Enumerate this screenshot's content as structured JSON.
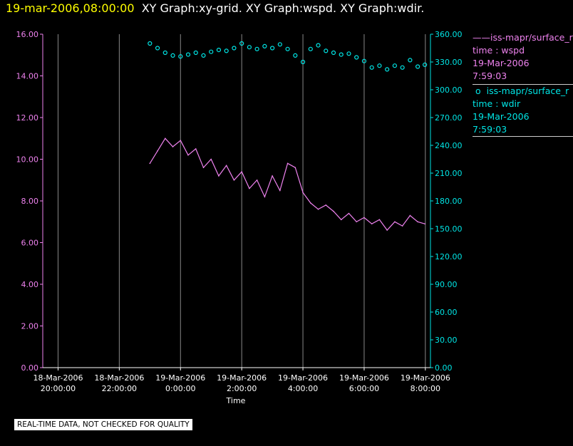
{
  "header": {
    "date_label": "19-mar-2006,08:00:00",
    "graph_list": "XY Graph:xy-grid.  XY Graph:wspd.  XY Graph:wdir."
  },
  "legend": [
    {
      "symbol": "——",
      "name": "iss-mapr/surface_r",
      "line1": "time : wspd",
      "line2": "19-Mar-2006",
      "line3": "7:59:03",
      "color": "#ee82ee"
    },
    {
      "symbol": "o",
      "name": "iss-mapr/surface_r",
      "line1": "time : wdir",
      "line2": "19-Mar-2006",
      "line3": "7:59:03",
      "color": "#00e5e5"
    }
  ],
  "disclaimer": "REAL-TIME DATA, NOT CHECKED FOR QUALITY",
  "colors": {
    "wspd": "#ee82ee",
    "wdir": "#00e5e5",
    "grid": "#888888",
    "text": "#ffffff"
  },
  "chart_data": {
    "type": "line",
    "xlabel": "Time",
    "xlim": [
      "18-Mar-2006 19:30",
      "19-Mar-2006 08:10"
    ],
    "x_ticks": [
      {
        "line1": "18-Mar-2006",
        "line2": "20:00:00"
      },
      {
        "line1": "18-Mar-2006",
        "line2": "22:00:00"
      },
      {
        "line1": "19-Mar-2006",
        "line2": "0:00:00"
      },
      {
        "line1": "19-Mar-2006",
        "line2": "2:00:00"
      },
      {
        "line1": "19-Mar-2006",
        "line2": "4:00:00"
      },
      {
        "line1": "19-Mar-2006",
        "line2": "6:00:00"
      },
      {
        "line1": "19-Mar-2006",
        "line2": "8:00:00"
      }
    ],
    "y_left": {
      "ylim": [
        0,
        16
      ],
      "ticks": [
        "0.00",
        "2.00",
        "4.00",
        "6.00",
        "8.00",
        "10.00",
        "12.00",
        "14.00",
        "16.00"
      ]
    },
    "y_right": {
      "ylim": [
        0,
        360
      ],
      "ticks": [
        "0.00",
        "30.00",
        "60.00",
        "90.00",
        "120.00",
        "150.00",
        "180.00",
        "210.00",
        "240.00",
        "270.00",
        "300.00",
        "330.00",
        "360.00"
      ]
    },
    "grid": "vertical",
    "series": [
      {
        "name": "iss-mapr/surface_r",
        "field": "wspd",
        "axis": "left",
        "style": "line",
        "x": [
          "18-Mar-2006 23:00",
          "18-Mar-2006 23:15",
          "18-Mar-2006 23:30",
          "18-Mar-2006 23:45",
          "19-Mar-2006 00:00",
          "19-Mar-2006 00:15",
          "19-Mar-2006 00:30",
          "19-Mar-2006 00:45",
          "19-Mar-2006 01:00",
          "19-Mar-2006 01:15",
          "19-Mar-2006 01:30",
          "19-Mar-2006 01:45",
          "19-Mar-2006 02:00",
          "19-Mar-2006 02:15",
          "19-Mar-2006 02:30",
          "19-Mar-2006 02:45",
          "19-Mar-2006 03:00",
          "19-Mar-2006 03:15",
          "19-Mar-2006 03:30",
          "19-Mar-2006 03:45",
          "19-Mar-2006 04:00",
          "19-Mar-2006 04:15",
          "19-Mar-2006 04:30",
          "19-Mar-2006 04:45",
          "19-Mar-2006 05:00",
          "19-Mar-2006 05:15",
          "19-Mar-2006 05:30",
          "19-Mar-2006 05:45",
          "19-Mar-2006 06:00",
          "19-Mar-2006 06:15",
          "19-Mar-2006 06:30",
          "19-Mar-2006 06:45",
          "19-Mar-2006 07:00",
          "19-Mar-2006 07:15",
          "19-Mar-2006 07:30",
          "19-Mar-2006 07:45",
          "19-Mar-2006 07:59"
        ],
        "values": [
          9.8,
          10.4,
          11.0,
          10.6,
          10.9,
          10.2,
          10.5,
          9.6,
          10.0,
          9.2,
          9.7,
          9.0,
          9.4,
          8.6,
          9.0,
          8.2,
          9.2,
          8.5,
          9.8,
          9.6,
          8.4,
          7.9,
          7.6,
          7.8,
          7.5,
          7.1,
          7.4,
          7.0,
          7.2,
          6.9,
          7.1,
          6.6,
          7.0,
          6.8,
          7.3,
          7.0,
          6.9
        ]
      },
      {
        "name": "iss-mapr/surface_r",
        "field": "wdir",
        "axis": "right",
        "style": "scatter",
        "x": [
          "18-Mar-2006 23:00",
          "18-Mar-2006 23:15",
          "18-Mar-2006 23:30",
          "18-Mar-2006 23:45",
          "19-Mar-2006 00:00",
          "19-Mar-2006 00:15",
          "19-Mar-2006 00:30",
          "19-Mar-2006 00:45",
          "19-Mar-2006 01:00",
          "19-Mar-2006 01:15",
          "19-Mar-2006 01:30",
          "19-Mar-2006 01:45",
          "19-Mar-2006 02:00",
          "19-Mar-2006 02:15",
          "19-Mar-2006 02:30",
          "19-Mar-2006 02:45",
          "19-Mar-2006 03:00",
          "19-Mar-2006 03:15",
          "19-Mar-2006 03:30",
          "19-Mar-2006 03:45",
          "19-Mar-2006 04:00",
          "19-Mar-2006 04:15",
          "19-Mar-2006 04:30",
          "19-Mar-2006 04:45",
          "19-Mar-2006 05:00",
          "19-Mar-2006 05:15",
          "19-Mar-2006 05:30",
          "19-Mar-2006 05:45",
          "19-Mar-2006 06:00",
          "19-Mar-2006 06:15",
          "19-Mar-2006 06:30",
          "19-Mar-2006 06:45",
          "19-Mar-2006 07:00",
          "19-Mar-2006 07:15",
          "19-Mar-2006 07:30",
          "19-Mar-2006 07:45",
          "19-Mar-2006 07:59"
        ],
        "values": [
          350,
          345,
          340,
          337,
          336,
          338,
          340,
          337,
          341,
          343,
          342,
          345,
          350,
          346,
          344,
          347,
          345,
          349,
          344,
          337,
          330,
          344,
          348,
          342,
          340,
          338,
          339,
          335,
          331,
          324,
          326,
          322,
          326,
          324,
          332,
          325,
          327
        ]
      }
    ]
  }
}
